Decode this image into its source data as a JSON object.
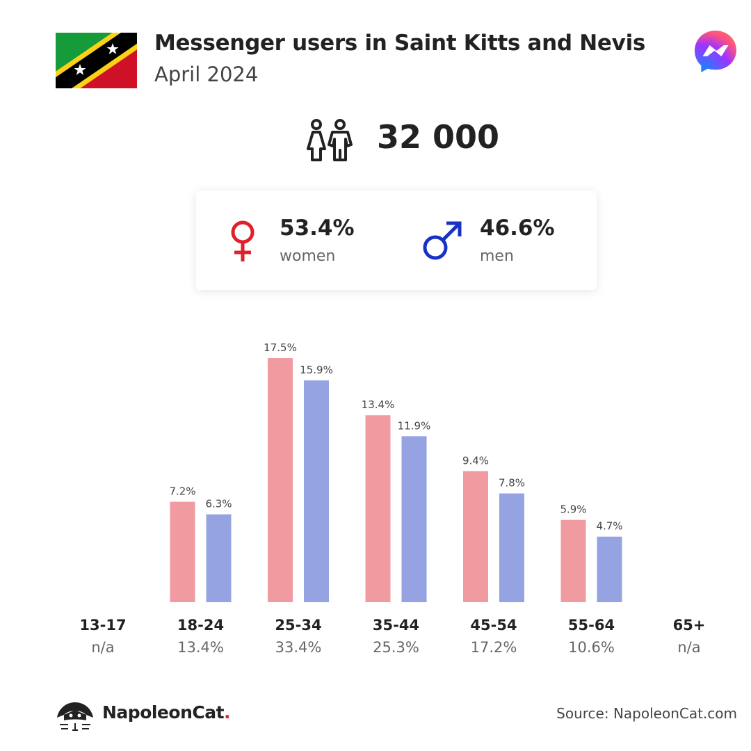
{
  "header": {
    "title": "Messenger users in Saint Kitts and Nevis",
    "subtitle": "April 2024",
    "flag_icon": "saint-kitts-and-nevis-flag",
    "platform_icon": "messenger-logo-icon"
  },
  "total": {
    "value": "32 000",
    "icon": "people-icon"
  },
  "gender": {
    "women": {
      "percent": "53.4%",
      "label": "women",
      "color": "#e0202a"
    },
    "men": {
      "percent": "46.6%",
      "label": "men",
      "color": "#1733c4"
    }
  },
  "chart_data": {
    "type": "bar",
    "categories": [
      "13-17",
      "18-24",
      "25-34",
      "35-44",
      "45-54",
      "55-64",
      "65+"
    ],
    "category_totals": [
      "n/a",
      "13.4%",
      "33.4%",
      "25.3%",
      "17.2%",
      "10.6%",
      "n/a"
    ],
    "series": [
      {
        "values": [
          null,
          7.2,
          17.5,
          13.4,
          9.4,
          5.9,
          null
        ],
        "color": "#f09b9f"
      },
      {
        "values": [
          null,
          6.3,
          15.9,
          11.9,
          7.8,
          4.7,
          null
        ],
        "color": "#96a3e2"
      }
    ],
    "value_suffix": "%",
    "ylim": [
      0,
      17.5
    ],
    "grid": false
  },
  "footer": {
    "brand": "NapoleonCat",
    "brand_dot": ".",
    "brand_icon": "napoleoncat-logo-icon",
    "source": "Source: NapoleonCat.com"
  }
}
